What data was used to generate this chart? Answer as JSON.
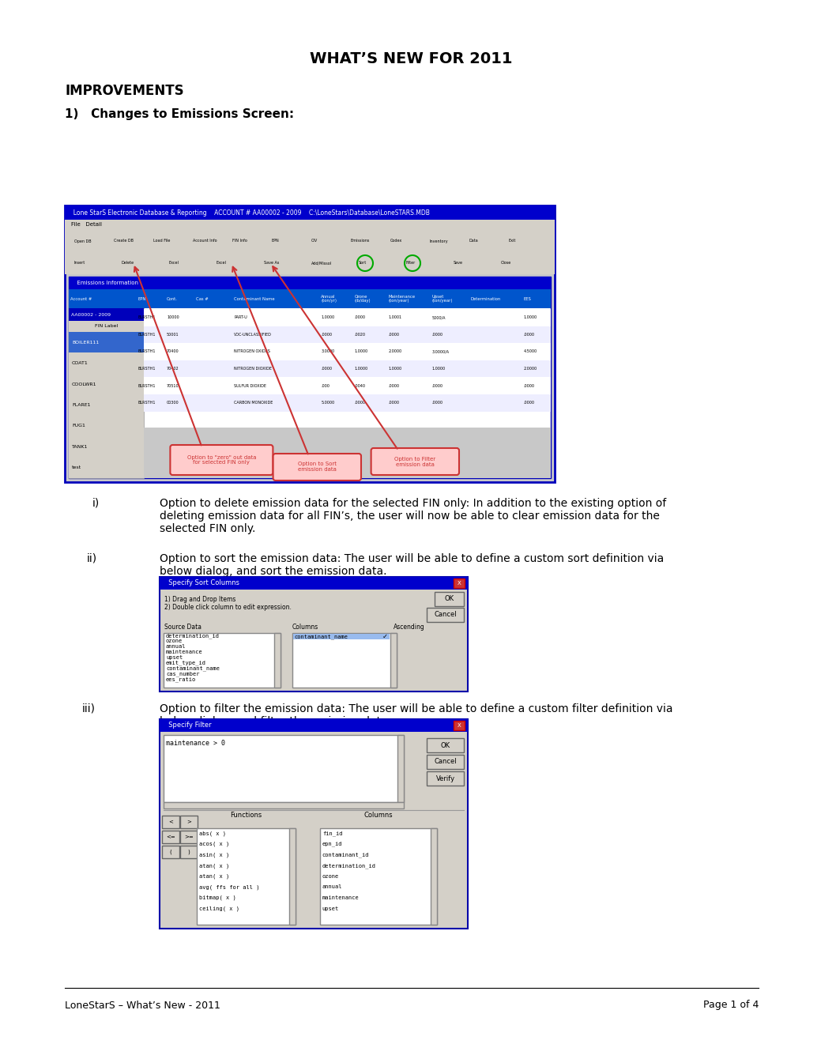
{
  "title": "WHAT’S NEW FOR 2011",
  "section_header": "IMPROVEMENTS",
  "item1_header": "1)   Changes to Emissions Screen:",
  "body_fontsize": 10,
  "footer_left": "LoneStarS – What’s New - 2011",
  "footer_right": "Page 1 of 4",
  "footer_fontsize": 9,
  "bg_color": "#ffffff",
  "text_color": "#000000",
  "item_i_label": "i)",
  "item_ii_label": "ii)",
  "item_iii_label": "iii)",
  "item_i_text": "Option to delete emission data for the selected FIN only: In addition to the existing option of\ndeleting emission data for all FIN’s, the user will now be able to clear emission data for the\nselected FIN only.",
  "item_ii_text": "Option to sort the emission data: The user will be able to define a custom sort definition via\nbelow dialog, and sort the emission data.",
  "item_iii_text": "Option to filter the emission data: The user will be able to define a custom filter definition via\nbelow dialog, and filter the emission data.",
  "blue_title": "#0000cc",
  "gray_bg": "#d4d0c8",
  "white": "#ffffff",
  "callout_red": "#cc3333",
  "callout_fill": "#ffcccc"
}
